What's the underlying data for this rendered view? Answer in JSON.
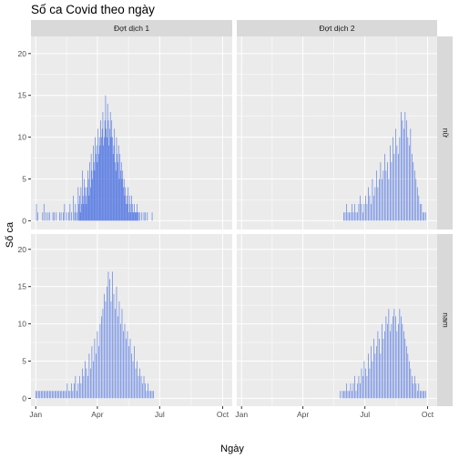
{
  "chart_data": {
    "type": "bar",
    "title": "Số ca Covid theo ngày",
    "xlabel": "Ngày",
    "ylabel": "Số ca",
    "facet_cols": [
      "Đợt dịch 1",
      "Đợt dịch 2"
    ],
    "facet_rows": [
      "nữ",
      "nam"
    ],
    "x_ticks": [
      "Jan",
      "Apr",
      "Jul",
      "Oct"
    ],
    "x_tick_days": [
      0,
      90,
      181,
      273
    ],
    "x_range_days": [
      -7,
      287
    ],
    "y_ticks": [
      0,
      5,
      10,
      15,
      20
    ],
    "ylim": [
      -1.05,
      22.05
    ],
    "bar_color": "#4169e1",
    "panel_bg": "#ebebeb",
    "strip_bg": "#d9d9d9",
    "grid_color": "#ffffff",
    "grid": true,
    "x_unit": "day of year",
    "panels": [
      {
        "row": "nữ",
        "col": "Đợt dịch 1",
        "days": [
          1,
          3,
          10,
          12,
          15,
          18,
          20,
          25,
          27,
          30,
          35,
          37,
          40,
          42,
          45,
          48,
          50,
          52,
          55,
          57,
          58,
          60,
          62,
          63,
          64,
          65,
          66,
          67,
          68,
          69,
          70,
          71,
          72,
          73,
          74,
          75,
          76,
          77,
          78,
          79,
          80,
          81,
          82,
          83,
          84,
          85,
          86,
          87,
          88,
          89,
          90,
          91,
          92,
          93,
          94,
          95,
          96,
          97,
          98,
          99,
          100,
          101,
          102,
          103,
          104,
          105,
          106,
          107,
          108,
          109,
          110,
          111,
          112,
          113,
          114,
          115,
          116,
          117,
          118,
          119,
          120,
          121,
          122,
          123,
          124,
          125,
          126,
          127,
          128,
          129,
          130,
          131,
          132,
          133,
          134,
          135,
          136,
          137,
          138,
          139,
          140,
          141,
          142,
          143,
          144,
          145,
          146,
          147,
          148,
          149,
          150,
          152,
          155,
          158,
          160,
          163,
          170
        ],
        "counts": [
          2,
          1,
          1,
          2,
          1,
          1,
          1,
          1,
          1,
          1,
          1,
          1,
          1,
          2,
          1,
          1,
          2,
          1,
          3,
          1,
          2,
          1,
          4,
          2,
          3,
          1,
          4,
          2,
          6,
          3,
          2,
          5,
          4,
          3,
          2,
          4,
          6,
          5,
          3,
          7,
          4,
          8,
          6,
          5,
          9,
          7,
          6,
          10,
          8,
          9,
          7,
          11,
          8,
          10,
          9,
          12,
          10,
          11,
          13,
          9,
          10,
          12,
          15,
          11,
          10,
          14,
          12,
          9,
          11,
          13,
          10,
          12,
          10,
          8,
          9,
          11,
          7,
          6,
          10,
          8,
          7,
          9,
          5,
          8,
          6,
          7,
          5,
          6,
          4,
          5,
          3,
          4,
          2,
          3,
          2,
          4,
          1,
          3,
          2,
          1,
          3,
          2,
          1,
          1,
          2,
          1,
          1,
          1,
          2,
          1,
          1,
          1,
          1,
          1,
          1,
          1,
          1
        ]
      },
      {
        "row": "nữ",
        "col": "Đợt dịch 2",
        "days": [
          150,
          152,
          154,
          156,
          158,
          160,
          162,
          164,
          166,
          168,
          170,
          172,
          174,
          176,
          178,
          180,
          182,
          184,
          186,
          188,
          190,
          192,
          194,
          196,
          198,
          200,
          202,
          204,
          206,
          208,
          210,
          212,
          214,
          216,
          218,
          220,
          222,
          224,
          226,
          228,
          230,
          232,
          234,
          236,
          238,
          240,
          242,
          244,
          246,
          248,
          250,
          252,
          254,
          256,
          258,
          260,
          262,
          264,
          266,
          268,
          270
        ],
        "counts": [
          1,
          1,
          2,
          1,
          1,
          1,
          2,
          1,
          2,
          1,
          1,
          2,
          3,
          2,
          1,
          2,
          3,
          2,
          4,
          3,
          2,
          5,
          3,
          4,
          6,
          4,
          5,
          7,
          5,
          6,
          8,
          6,
          7,
          5,
          9,
          7,
          10,
          8,
          11,
          9,
          8,
          10,
          13,
          12,
          11,
          13,
          12,
          10,
          9,
          11,
          8,
          7,
          6,
          5,
          4,
          3,
          2,
          2,
          1,
          1,
          1
        ]
      },
      {
        "row": "nam",
        "col": "Đợt dịch 1",
        "days": [
          0,
          2,
          4,
          6,
          8,
          10,
          12,
          14,
          16,
          18,
          20,
          22,
          24,
          26,
          28,
          30,
          32,
          34,
          36,
          38,
          40,
          42,
          44,
          46,
          48,
          50,
          52,
          54,
          56,
          58,
          60,
          62,
          64,
          66,
          68,
          70,
          72,
          74,
          76,
          78,
          80,
          82,
          84,
          86,
          88,
          90,
          92,
          94,
          96,
          98,
          100,
          102,
          104,
          106,
          108,
          110,
          112,
          114,
          116,
          118,
          120,
          122,
          124,
          126,
          128,
          130,
          132,
          134,
          136,
          138,
          140,
          142,
          144,
          146,
          148,
          150,
          152,
          154,
          156,
          158,
          160,
          162,
          164,
          166,
          168,
          170,
          172
        ],
        "counts": [
          1,
          1,
          1,
          1,
          1,
          1,
          1,
          1,
          1,
          1,
          1,
          1,
          1,
          1,
          1,
          1,
          1,
          1,
          1,
          1,
          1,
          1,
          1,
          2,
          1,
          1,
          2,
          1,
          2,
          3,
          1,
          2,
          3,
          2,
          4,
          3,
          5,
          4,
          3,
          6,
          4,
          7,
          5,
          8,
          6,
          9,
          7,
          10,
          11,
          12,
          14,
          13,
          15,
          17,
          16,
          13,
          17,
          14,
          12,
          15,
          11,
          13,
          10,
          12,
          9,
          10,
          8,
          9,
          7,
          8,
          6,
          5,
          7,
          4,
          5,
          3,
          4,
          3,
          2,
          3,
          2,
          1,
          2,
          1,
          1,
          1,
          1
        ]
      },
      {
        "row": "nam",
        "col": "Đợt dịch 2",
        "days": [
          145,
          148,
          150,
          152,
          154,
          156,
          158,
          160,
          162,
          164,
          166,
          168,
          170,
          172,
          174,
          176,
          178,
          180,
          182,
          184,
          186,
          188,
          190,
          192,
          194,
          196,
          198,
          200,
          202,
          204,
          206,
          208,
          210,
          212,
          214,
          216,
          218,
          220,
          222,
          224,
          226,
          228,
          230,
          232,
          234,
          236,
          238,
          240,
          242,
          244,
          246,
          248,
          250,
          252,
          254,
          256,
          258,
          260,
          262,
          264,
          266,
          268,
          270
        ],
        "counts": [
          1,
          1,
          1,
          1,
          2,
          1,
          1,
          2,
          1,
          2,
          3,
          1,
          2,
          3,
          2,
          4,
          3,
          5,
          4,
          3,
          6,
          4,
          7,
          5,
          8,
          6,
          7,
          9,
          8,
          6,
          10,
          8,
          9,
          11,
          10,
          12,
          9,
          10,
          11,
          12,
          11,
          9,
          10,
          12,
          11,
          10,
          9,
          8,
          7,
          6,
          5,
          4,
          3,
          2,
          3,
          2,
          1,
          2,
          1,
          1,
          1,
          1,
          1
        ]
      }
    ]
  }
}
